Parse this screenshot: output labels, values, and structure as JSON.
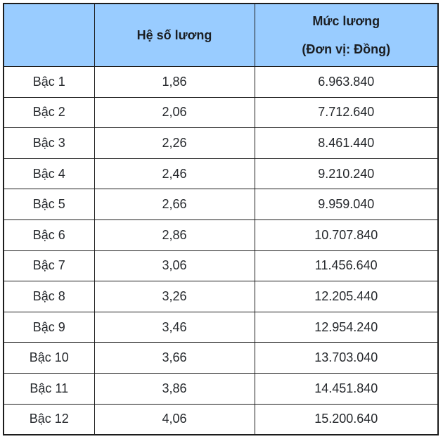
{
  "header": {
    "corner": "",
    "coefficient_label": "Hệ số lương",
    "salary_label_line1": "Mức lương",
    "salary_label_line2": "(Đơn vị: Đồng)"
  },
  "rows": [
    {
      "level": "Bậc 1",
      "coefficient": "1,86",
      "salary": "6.963.840"
    },
    {
      "level": "Bậc 2",
      "coefficient": "2,06",
      "salary": "7.712.640"
    },
    {
      "level": "Bậc 3",
      "coefficient": "2,26",
      "salary": "8.461.440"
    },
    {
      "level": "Bậc 4",
      "coefficient": "2,46",
      "salary": "9.210.240"
    },
    {
      "level": "Bậc 5",
      "coefficient": "2,66",
      "salary": "9.959.040"
    },
    {
      "level": "Bậc 6",
      "coefficient": "2,86",
      "salary": "10.707.840"
    },
    {
      "level": "Bậc 7",
      "coefficient": "3,06",
      "salary": "11.456.640"
    },
    {
      "level": "Bậc 8",
      "coefficient": "3,26",
      "salary": "12.205.440"
    },
    {
      "level": "Bậc 9",
      "coefficient": "3,46",
      "salary": "12.954.240"
    },
    {
      "level": "Bậc 10",
      "coefficient": "3,66",
      "salary": "13.703.040"
    },
    {
      "level": "Bậc 11",
      "coefficient": "3,86",
      "salary": "14.451.840"
    },
    {
      "level": "Bậc 12",
      "coefficient": "4,06",
      "salary": "15.200.640"
    }
  ],
  "colors": {
    "header_bg": "#99ccff",
    "border": "#1c1c1c",
    "header_text": "#1b1e22",
    "body_text": "#25282c",
    "page_bg": "#ffffff"
  }
}
